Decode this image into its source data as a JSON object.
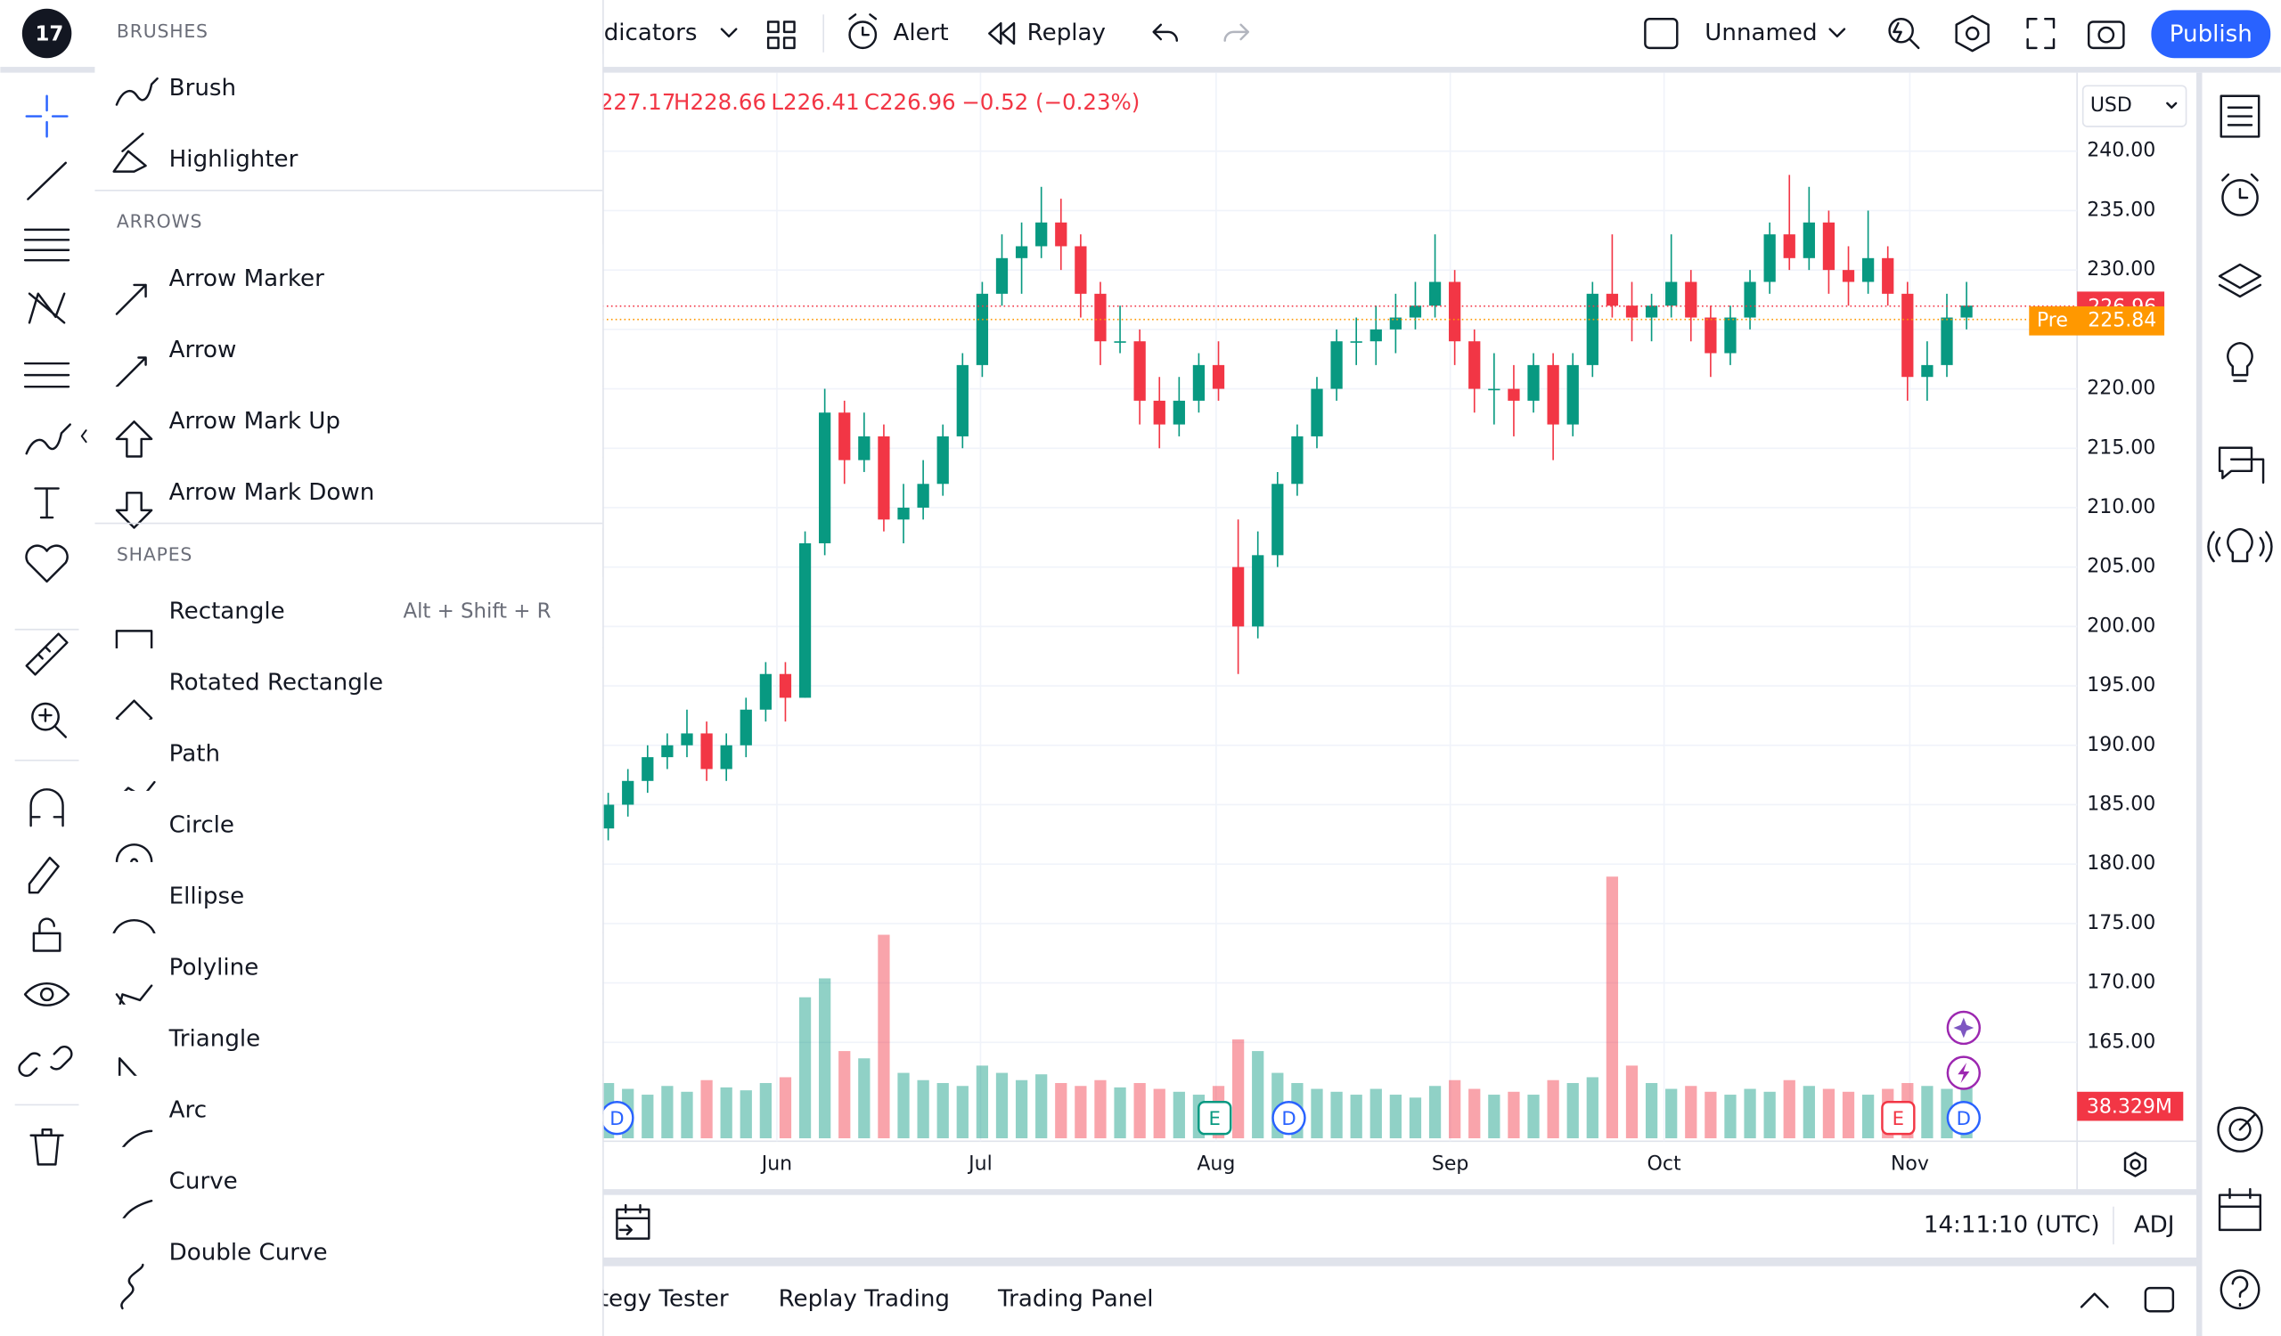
{
  "top_bar": {
    "indicators": "dicators",
    "alert": "Alert",
    "replay": "Replay",
    "layout_name": "Unnamed",
    "publish": "Publish"
  },
  "drawing_menu": {
    "sections": [
      {
        "header": "BRUSHES",
        "items": [
          {
            "label": "Brush"
          },
          {
            "label": "Highlighter"
          }
        ]
      },
      {
        "header": "ARROWS",
        "items": [
          {
            "label": "Arrow Marker"
          },
          {
            "label": "Arrow"
          },
          {
            "label": "Arrow Mark Up"
          },
          {
            "label": "Arrow Mark Down"
          }
        ]
      },
      {
        "header": "SHAPES",
        "items": [
          {
            "label": "Rectangle",
            "shortcut": "Alt + Shift + R"
          },
          {
            "label": "Rotated Rectangle"
          },
          {
            "label": "Path"
          },
          {
            "label": "Circle"
          },
          {
            "label": "Ellipse"
          },
          {
            "label": "Polyline"
          },
          {
            "label": "Triangle"
          },
          {
            "label": "Arc"
          },
          {
            "label": "Curve"
          },
          {
            "label": "Double Curve"
          }
        ]
      }
    ]
  },
  "chart": {
    "legend": [
      "227.17",
      "H228.66",
      "L226.41",
      "C226.96",
      "−0.52 (−0.23%)"
    ],
    "currency": "USD",
    "yticks": [
      {
        "value": 240,
        "label": "240.00"
      },
      {
        "value": 235,
        "label": "235.00"
      },
      {
        "value": 230,
        "label": "230.00"
      },
      {
        "value": 225,
        "label": "225.00"
      },
      {
        "value": 220,
        "label": "220.00"
      },
      {
        "value": 215,
        "label": "215.00"
      },
      {
        "value": 210,
        "label": "210.00"
      },
      {
        "value": 205,
        "label": "205.00"
      },
      {
        "value": 200,
        "label": "200.00"
      },
      {
        "value": 195,
        "label": "195.00"
      },
      {
        "value": 190,
        "label": "190.00"
      },
      {
        "value": 185,
        "label": "185.00"
      },
      {
        "value": 180,
        "label": "180.00"
      },
      {
        "value": 175,
        "label": "175.00"
      },
      {
        "value": 170,
        "label": "170.00"
      },
      {
        "value": 165,
        "label": "165.00"
      }
    ],
    "last_price": 226.96,
    "pre_label": "Pre",
    "pre_price": 225.84,
    "volume_label": "38.329M",
    "months": [
      "Jun",
      "Jul",
      "Aug",
      "Sep",
      "Oct",
      "Nov"
    ],
    "events": [
      "D",
      "E",
      "D",
      "E",
      "D"
    ],
    "up_color": "#089981",
    "down_color": "#f23645",
    "candles": [
      [
        183,
        186,
        182,
        185
      ],
      [
        185,
        188,
        184,
        187
      ],
      [
        187,
        190,
        186,
        189
      ],
      [
        189,
        191,
        188,
        190
      ],
      [
        190,
        193,
        189,
        191
      ],
      [
        191,
        192,
        187,
        188
      ],
      [
        188,
        191,
        187,
        190
      ],
      [
        190,
        194,
        189,
        193
      ],
      [
        193,
        197,
        192,
        196
      ],
      [
        196,
        197,
        192,
        194
      ],
      [
        194,
        208,
        194,
        207
      ],
      [
        207,
        220,
        206,
        218
      ],
      [
        218,
        219,
        212,
        214
      ],
      [
        214,
        218,
        213,
        216
      ],
      [
        216,
        217,
        208,
        209
      ],
      [
        209,
        212,
        207,
        210
      ],
      [
        210,
        214,
        209,
        212
      ],
      [
        212,
        217,
        211,
        216
      ],
      [
        216,
        223,
        215,
        222
      ],
      [
        222,
        229,
        221,
        228
      ],
      [
        228,
        233,
        227,
        231
      ],
      [
        231,
        234,
        228,
        232
      ],
      [
        232,
        237,
        231,
        234
      ],
      [
        234,
        236,
        230,
        232
      ],
      [
        232,
        233,
        226,
        228
      ],
      [
        228,
        229,
        222,
        224
      ],
      [
        224,
        227,
        223,
        224
      ],
      [
        224,
        225,
        217,
        219
      ],
      [
        219,
        221,
        215,
        217
      ],
      [
        217,
        221,
        216,
        219
      ],
      [
        219,
        223,
        218,
        222
      ],
      [
        222,
        224,
        219,
        220
      ],
      [
        205,
        209,
        196,
        200
      ],
      [
        200,
        208,
        199,
        206
      ],
      [
        206,
        213,
        205,
        212
      ],
      [
        212,
        217,
        211,
        216
      ],
      [
        216,
        221,
        215,
        220
      ],
      [
        220,
        225,
        219,
        224
      ],
      [
        224,
        226,
        222,
        224
      ],
      [
        224,
        227,
        222,
        225
      ],
      [
        225,
        228,
        223,
        226
      ],
      [
        226,
        229,
        225,
        227
      ],
      [
        227,
        233,
        226,
        229
      ],
      [
        229,
        230,
        222,
        224
      ],
      [
        224,
        225,
        218,
        220
      ],
      [
        220,
        223,
        217,
        220
      ],
      [
        220,
        222,
        216,
        219
      ],
      [
        219,
        223,
        218,
        222
      ],
      [
        222,
        223,
        214,
        217
      ],
      [
        217,
        223,
        216,
        222
      ],
      [
        222,
        229,
        221,
        228
      ],
      [
        228,
        233,
        226,
        227
      ],
      [
        227,
        229,
        224,
        226
      ],
      [
        226,
        228,
        224,
        227
      ],
      [
        227,
        233,
        226,
        229
      ],
      [
        229,
        230,
        224,
        226
      ],
      [
        226,
        227,
        221,
        223
      ],
      [
        223,
        227,
        222,
        226
      ],
      [
        226,
        230,
        225,
        229
      ],
      [
        229,
        234,
        228,
        233
      ],
      [
        233,
        238,
        230,
        231
      ],
      [
        231,
        237,
        230,
        234
      ],
      [
        234,
        235,
        228,
        230
      ],
      [
        230,
        232,
        227,
        229
      ],
      [
        229,
        235,
        228,
        231
      ],
      [
        231,
        232,
        227,
        228
      ],
      [
        228,
        229,
        219,
        221
      ],
      [
        221,
        224,
        219,
        222
      ],
      [
        222,
        228,
        221,
        226
      ],
      [
        226,
        229,
        225,
        227
      ]
    ],
    "volume": [
      38,
      34,
      30,
      36,
      32,
      40,
      35,
      33,
      38,
      42,
      97,
      110,
      60,
      55,
      140,
      45,
      40,
      38,
      36,
      50,
      45,
      40,
      44,
      38,
      36,
      40,
      35,
      38,
      34,
      32,
      30,
      36,
      68,
      60,
      45,
      38,
      34,
      32,
      30,
      34,
      30,
      28,
      36,
      40,
      34,
      30,
      32,
      30,
      40,
      38,
      42,
      180,
      50,
      38,
      34,
      36,
      32,
      30,
      34,
      32,
      40,
      36,
      34,
      32,
      30,
      34,
      38,
      36,
      34,
      38
    ]
  },
  "bottom": {
    "time": "14:11:10 (UTC)",
    "adj": "ADJ",
    "tabs": [
      "tegy Tester",
      "Replay Trading",
      "Trading Panel"
    ]
  }
}
